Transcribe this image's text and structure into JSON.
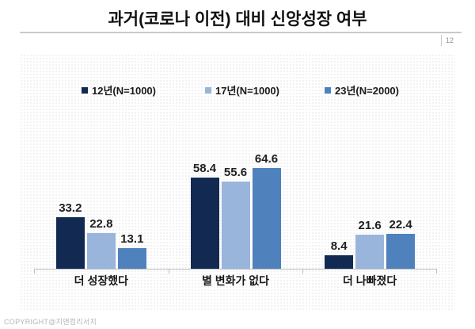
{
  "header": {
    "title": "과거(코로나 이전) 대비 신앙성장 여부",
    "page_number": "12"
  },
  "footer": {
    "copyright": "COPYRIGHT@지앤컴리서치"
  },
  "chart_data": {
    "type": "bar",
    "title": "과거(코로나 이전) 대비 신앙성장 여부",
    "categories": [
      "더 성장했다",
      "별 변화가 없다",
      "더 나빠졌다"
    ],
    "series": [
      {
        "name": "12년(N=1000)",
        "color": "#122a52",
        "values": [
          33.2,
          58.4,
          8.4
        ]
      },
      {
        "name": "17년(N=1000)",
        "color": "#9ab5dc",
        "values": [
          22.8,
          55.6,
          21.6
        ]
      },
      {
        "name": "23년(N=2000)",
        "color": "#4f81bd",
        "values": [
          13.1,
          64.6,
          22.4
        ]
      }
    ],
    "value_labels": true,
    "xlabel": "",
    "ylabel": "",
    "ylim": [
      0,
      100
    ],
    "grid": false,
    "legend_position": "top",
    "axis_color": "#bfbfbf"
  }
}
